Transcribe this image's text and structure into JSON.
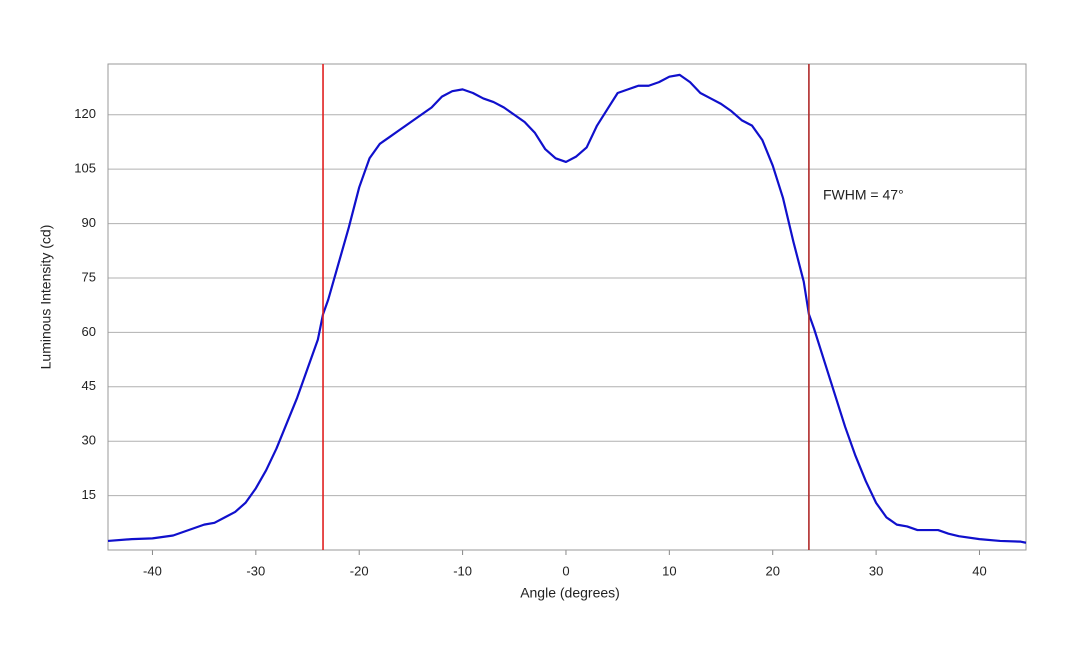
{
  "chart_data": {
    "type": "line",
    "x_label": "Angle (degrees)",
    "y_label": "Luminous Intensity (cd)",
    "annotation": "FWHM = 47°",
    "x": [
      -44.3,
      -42,
      -40,
      -38,
      -36,
      -35,
      -34,
      -33,
      -32,
      -31,
      -30,
      -29,
      -28,
      -27,
      -26,
      -25,
      -24,
      -23.5,
      -23,
      -22,
      -21,
      -20,
      -19,
      -18,
      -17,
      -16,
      -15,
      -14,
      -13,
      -12,
      -11,
      -10,
      -9,
      -8,
      -7,
      -6,
      -5,
      -4,
      -3,
      -2,
      -1,
      0,
      1,
      2,
      3,
      4,
      5,
      6,
      7,
      8,
      9,
      10,
      11,
      12,
      13,
      14,
      15,
      16,
      17,
      18,
      19,
      20,
      21,
      22,
      23,
      23.5,
      24,
      25,
      26,
      27,
      28,
      29,
      30,
      31,
      32,
      33,
      34,
      35,
      36,
      37,
      38,
      40,
      42,
      44,
      44.5
    ],
    "series": [
      {
        "name": "Luminous Intensity",
        "color": "#1010cc",
        "values": [
          2.5,
          3,
          3.2,
          4,
          6,
          7,
          7.5,
          9,
          10.5,
          13,
          17,
          22,
          28,
          35,
          42,
          50,
          58,
          65,
          69,
          79,
          89,
          100,
          108,
          112,
          114,
          116,
          118,
          120,
          122,
          125,
          126.5,
          127,
          126,
          124.5,
          123.5,
          122,
          120,
          118,
          115,
          110.5,
          108,
          107,
          108.5,
          111,
          117,
          121.5,
          126,
          127,
          128,
          128,
          129,
          130.5,
          131,
          129,
          126,
          124.5,
          123,
          121,
          118.5,
          117,
          113,
          106,
          97,
          85,
          74,
          65,
          61,
          52,
          43,
          34,
          26,
          19,
          13,
          9,
          7,
          6.5,
          5.5,
          5.5,
          5.5,
          4.5,
          3.8,
          3,
          2.5,
          2.3,
          2
        ]
      }
    ],
    "vlines": [
      {
        "value": -23.5,
        "color": "#e02020"
      },
      {
        "value": 23.5,
        "color": "#b02a2a"
      }
    ],
    "xlim": [
      -44.3,
      44.5
    ],
    "xticks": [
      -40,
      -30,
      -20,
      -10,
      0,
      10,
      20,
      30,
      40
    ],
    "ylim": [
      0,
      134
    ],
    "yticks": [
      15,
      30,
      45,
      60,
      75,
      90,
      105,
      120
    ],
    "grid": true
  }
}
